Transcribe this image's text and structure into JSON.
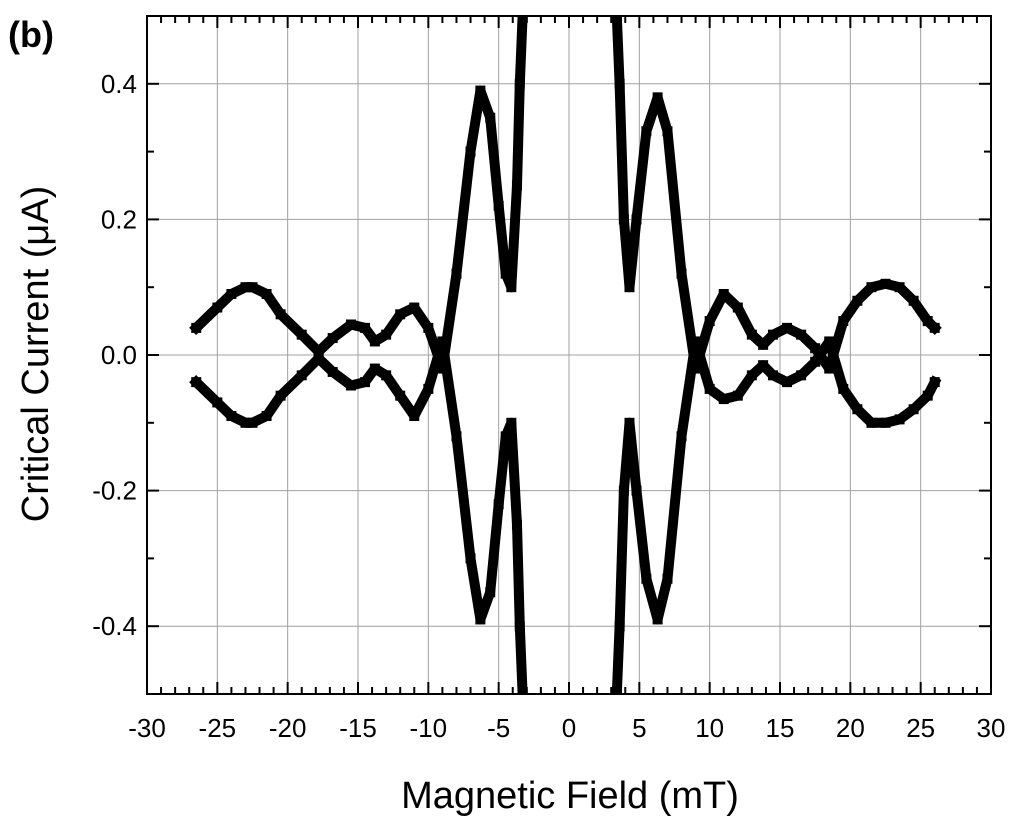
{
  "chart_data": {
    "type": "scatter",
    "panel_label": "(b)",
    "title": "",
    "xlabel": "Magnetic Field (mT)",
    "ylabel": "Critical Current (μA)",
    "xlim": [
      -30,
      30
    ],
    "ylim": [
      -0.5,
      0.5
    ],
    "xticks": [
      -30,
      -25,
      -20,
      -15,
      -10,
      -5,
      0,
      5,
      10,
      15,
      20,
      25,
      30
    ],
    "yticks": [
      -0.4,
      -0.2,
      0.0,
      0.2,
      0.4
    ],
    "ytick_labels": [
      "-0.4",
      "-0.2",
      "0.0",
      "0.2",
      "0.4"
    ],
    "grid": true,
    "marker_color": "#000000",
    "series": [
      {
        "x": [
          -26.5,
          -25,
          -24,
          -23,
          -22.5,
          -21.5,
          -20.5,
          -19,
          -17.8,
          -16.8,
          -15.5,
          -14.5,
          -13.8,
          -13,
          -12,
          -11,
          -10,
          -9,
          -8,
          -7,
          -6.3,
          -5.6,
          -5,
          -4.5,
          -4.1,
          -3.7,
          -3.5,
          -3.3
        ],
        "y": [
          0.04,
          0.07,
          0.09,
          0.1,
          0.1,
          0.09,
          0.06,
          0.03,
          0.005,
          0.025,
          0.045,
          0.04,
          0.02,
          0.03,
          0.06,
          0.07,
          0.04,
          -0.02,
          0.12,
          0.3,
          0.39,
          0.35,
          0.22,
          0.12,
          0.1,
          0.25,
          0.4,
          0.5
        ]
      },
      {
        "x": [
          -26.5,
          -25,
          -24,
          -23,
          -22.5,
          -21.5,
          -20.5,
          -19,
          -17.8,
          -16.8,
          -15.5,
          -14.5,
          -13.8,
          -13,
          -12,
          -11,
          -10,
          -9,
          -8,
          -7,
          -6.3,
          -5.6,
          -5,
          -4.5,
          -4.1,
          -3.7,
          -3.5,
          -3.3
        ],
        "y": [
          -0.04,
          -0.07,
          -0.09,
          -0.1,
          -0.1,
          -0.09,
          -0.06,
          -0.03,
          -0.005,
          -0.025,
          -0.045,
          -0.04,
          -0.02,
          -0.03,
          -0.06,
          -0.09,
          -0.05,
          0.02,
          -0.12,
          -0.3,
          -0.39,
          -0.35,
          -0.22,
          -0.12,
          -0.1,
          -0.25,
          -0.4,
          -0.5
        ]
      },
      {
        "x": [
          3.4,
          3.6,
          3.9,
          4.3,
          4.8,
          5.5,
          6.3,
          7,
          8,
          9,
          10,
          11,
          12,
          13,
          13.8,
          14.5,
          15.5,
          16.5,
          17.5,
          18.5,
          19.5,
          20.5,
          21.5,
          22.5,
          23.5,
          24.5,
          25.5,
          26
        ],
        "y": [
          0.5,
          0.4,
          0.2,
          0.1,
          0.2,
          0.33,
          0.38,
          0.33,
          0.12,
          -0.02,
          0.05,
          0.09,
          0.07,
          0.03,
          0.015,
          0.03,
          0.04,
          0.03,
          0.01,
          -0.02,
          0.05,
          0.08,
          0.1,
          0.105,
          0.1,
          0.08,
          0.05,
          0.04
        ]
      },
      {
        "x": [
          3.4,
          3.6,
          3.9,
          4.3,
          4.8,
          5.5,
          6.3,
          7,
          8,
          9,
          10,
          11,
          12,
          13,
          13.8,
          14.5,
          15.5,
          16.5,
          17.5,
          18.5,
          19.5,
          20.5,
          21.5,
          22.5,
          23.5,
          24.5,
          25.5,
          26
        ],
        "y": [
          -0.5,
          -0.4,
          -0.2,
          -0.1,
          -0.2,
          -0.33,
          -0.39,
          -0.33,
          -0.12,
          0.02,
          -0.05,
          -0.065,
          -0.06,
          -0.03,
          -0.015,
          -0.03,
          -0.04,
          -0.03,
          -0.01,
          0.02,
          -0.05,
          -0.08,
          -0.1,
          -0.1,
          -0.095,
          -0.08,
          -0.06,
          -0.04
        ]
      }
    ]
  }
}
